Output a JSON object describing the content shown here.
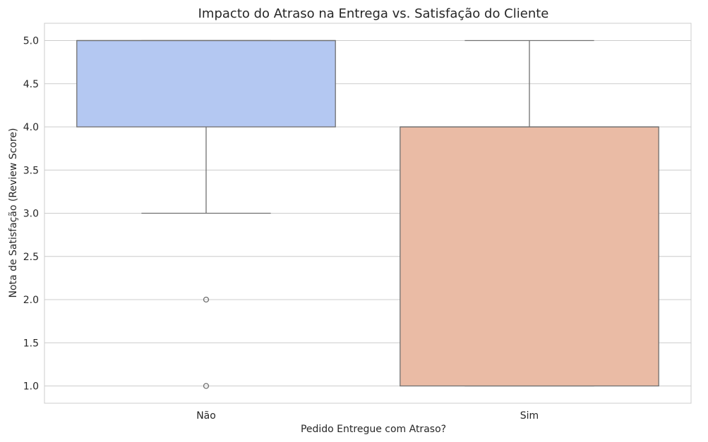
{
  "chart_data": {
    "type": "box",
    "title": "Impacto do Atraso na Entrega vs. Satisfação do Cliente",
    "xlabel": "Pedido Entregue com Atraso?",
    "ylabel": "Nota de Satisfação (Review Score)",
    "ylim": [
      0.8,
      5.2
    ],
    "yticks": [
      1.0,
      1.5,
      2.0,
      2.5,
      3.0,
      3.5,
      4.0,
      4.5,
      5.0
    ],
    "ytick_labels": [
      "1.0",
      "1.5",
      "2.0",
      "2.5",
      "3.0",
      "3.5",
      "4.0",
      "4.5",
      "5.0"
    ],
    "categories": [
      "Não",
      "Sim"
    ],
    "grid": true,
    "boxes": [
      {
        "category": "Não",
        "whisker_low": 3.0,
        "q1": 4.0,
        "median": 5.0,
        "q3": 5.0,
        "whisker_high": 5.0,
        "outliers": [
          2.0,
          1.0
        ],
        "color": "#b4c8f2"
      },
      {
        "category": "Sim",
        "whisker_low": 1.0,
        "q1": 1.0,
        "median": 4.0,
        "q3": 4.0,
        "whisker_high": 5.0,
        "outliers": [],
        "color": "#eabba5"
      }
    ]
  }
}
